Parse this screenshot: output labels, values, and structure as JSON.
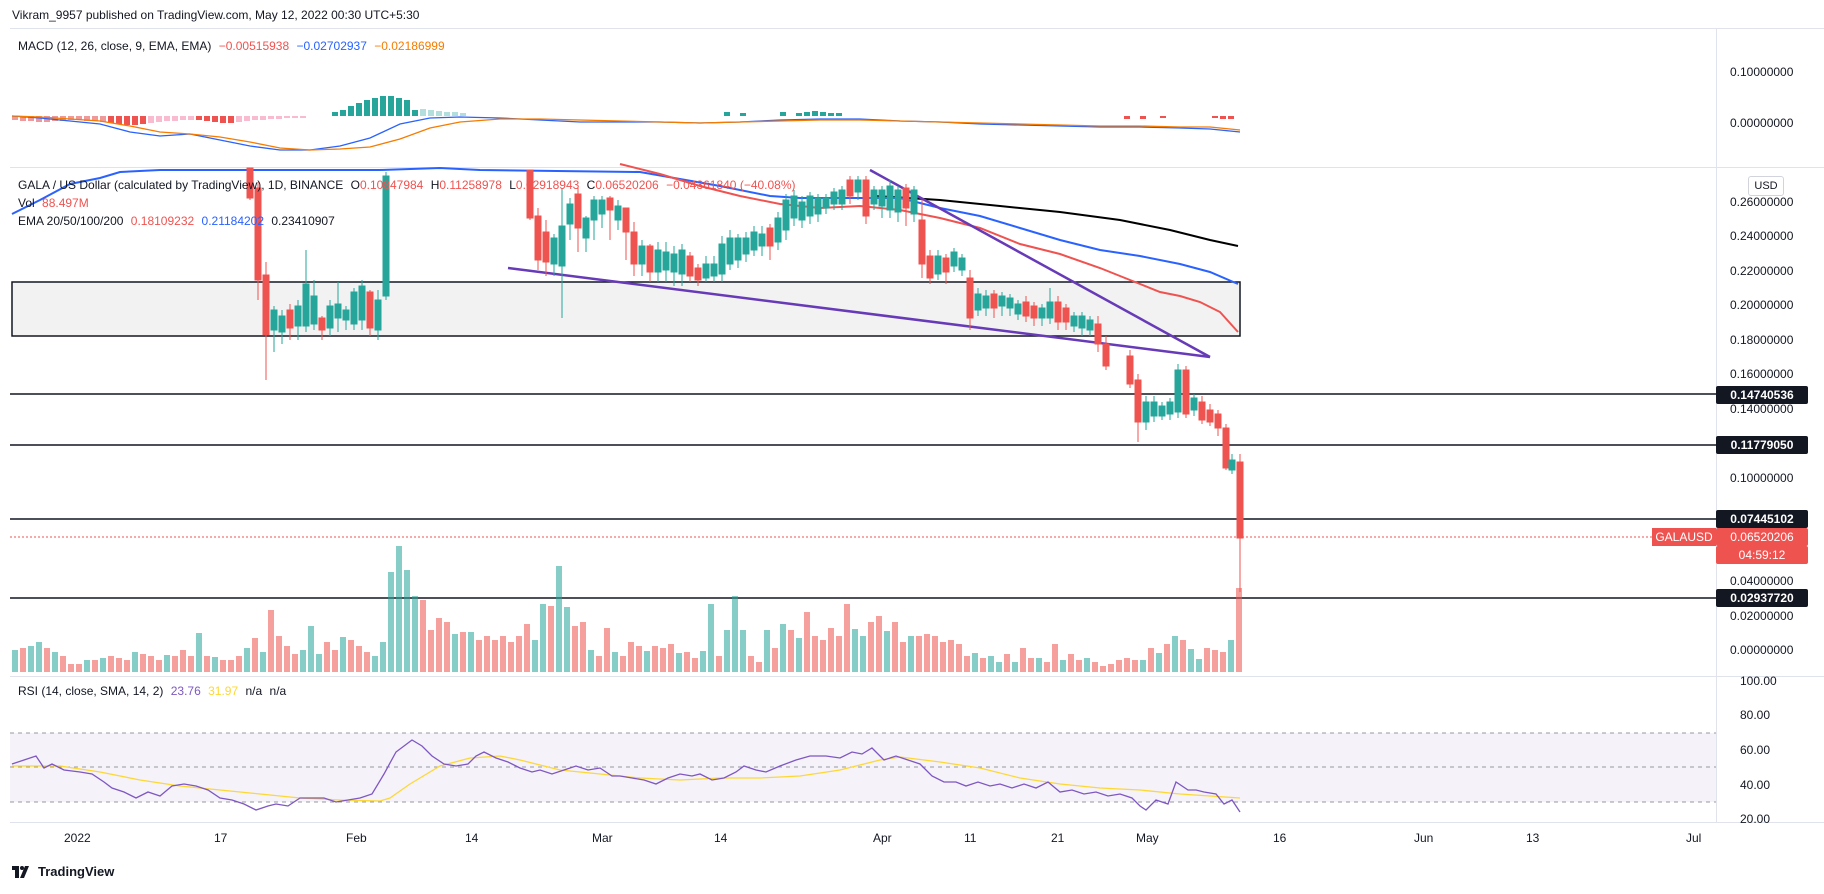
{
  "header": {
    "publisher": "Vikram_9957 published on TradingView.com, May 12, 2022 00:30 UTC+5:30"
  },
  "macd": {
    "label": "MACD (12, 26, close, 9, EMA, EMA)",
    "v1": "−0.00515938",
    "v2": "−0.02702937",
    "v3": "−0.02186999",
    "ticks": [
      "0.10000000",
      "0.00000000"
    ]
  },
  "main": {
    "title": "GALA / US Dollar (calculated by TradingView), 1D, BINANCE",
    "o_label": "O",
    "o": "0.10847984",
    "h_label": "H",
    "h": "0.11258978",
    "l_label": "L",
    "l": "0.02918943",
    "c_label": "C",
    "c": "0.06520206",
    "chg": "−0.04361840 (−40.08%)",
    "vol_label": "Vol",
    "vol": "88.497M",
    "ema_label": "EMA 20/50/100/200",
    "ema20": "0.18109232",
    "ema50": "0.21184202",
    "ema100": "0.23410907",
    "currency": "USD",
    "ticks": [
      "0.26000000",
      "0.24000000",
      "0.22000000",
      "0.20000000",
      "0.18000000",
      "0.16000000",
      "0.14000000",
      "0.10000000",
      "0.04000000",
      "0.02000000",
      "0.00000000"
    ],
    "levels": [
      "0.14740536",
      "0.11779050",
      "0.07445102",
      "0.02937720"
    ],
    "last_symbol": "GALAUSD",
    "last_price": "0.06520206",
    "countdown": "04:59:12"
  },
  "rsi": {
    "label": "RSI (14, close, SMA, 14, 2)",
    "v1": "23.76",
    "v2": "31.97",
    "v3": "n/a",
    "v4": "n/a",
    "ticks": [
      "100.00",
      "80.00",
      "60.00",
      "40.00",
      "20.00"
    ]
  },
  "xaxis": [
    "2022",
    "17",
    "Feb",
    "14",
    "Mar",
    "14",
    "Apr",
    "11",
    "21",
    "May",
    "16",
    "Jun",
    "13",
    "Jul"
  ],
  "footer": {
    "brand": "TradingView"
  },
  "colors": {
    "up": "#26a69a",
    "down": "#ef5350",
    "ema20": "#ef5350",
    "ema50": "#2962ff",
    "ema100": "#000000",
    "trend": "#673ab7",
    "rsi": "#7e57c2",
    "rsi_ma": "#fdd835"
  }
}
